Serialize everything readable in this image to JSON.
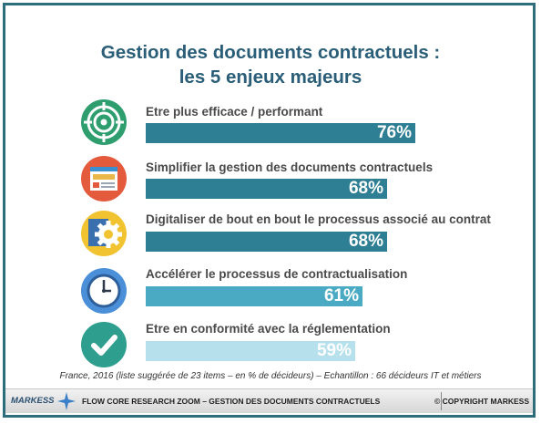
{
  "title": {
    "line1": "Gestion des documents contractuels :",
    "line2": "les 5 enjeux majeurs"
  },
  "chart_data": {
    "type": "bar",
    "orientation": "horizontal",
    "categories": [
      "Etre plus efficace / performant",
      "Simplifier la gestion des documents contractuels",
      "Digitaliser de bout en bout le processus associé au contrat",
      "Accélérer le processus de contractualisation",
      "Etre en conformité avec la réglementation"
    ],
    "values": [
      76,
      68,
      68,
      61,
      59
    ],
    "value_labels": [
      "76%",
      "68%",
      "68%",
      "61%",
      "59%"
    ],
    "bar_colors": [
      "#2e7f93",
      "#2e7f93",
      "#2e7f93",
      "#4aaac4",
      "#b6e0ec"
    ],
    "icons": [
      "target-icon",
      "browser-window-icon",
      "gear-document-icon",
      "clock-icon",
      "checkmark-icon"
    ],
    "unit": "%",
    "xlim": [
      0,
      100
    ]
  },
  "footnote": "France, 2016 (liste suggérée de 23 items – en % de décideurs) – Echantillon : 66 décideurs IT et métiers",
  "footer": {
    "logo": "MARKESS",
    "center": "FLOW CORE RESEARCH ZOOM – GESTION DES DOCUMENTS CONTRACTUELS",
    "right": "© COPYRIGHT MARKESS"
  }
}
